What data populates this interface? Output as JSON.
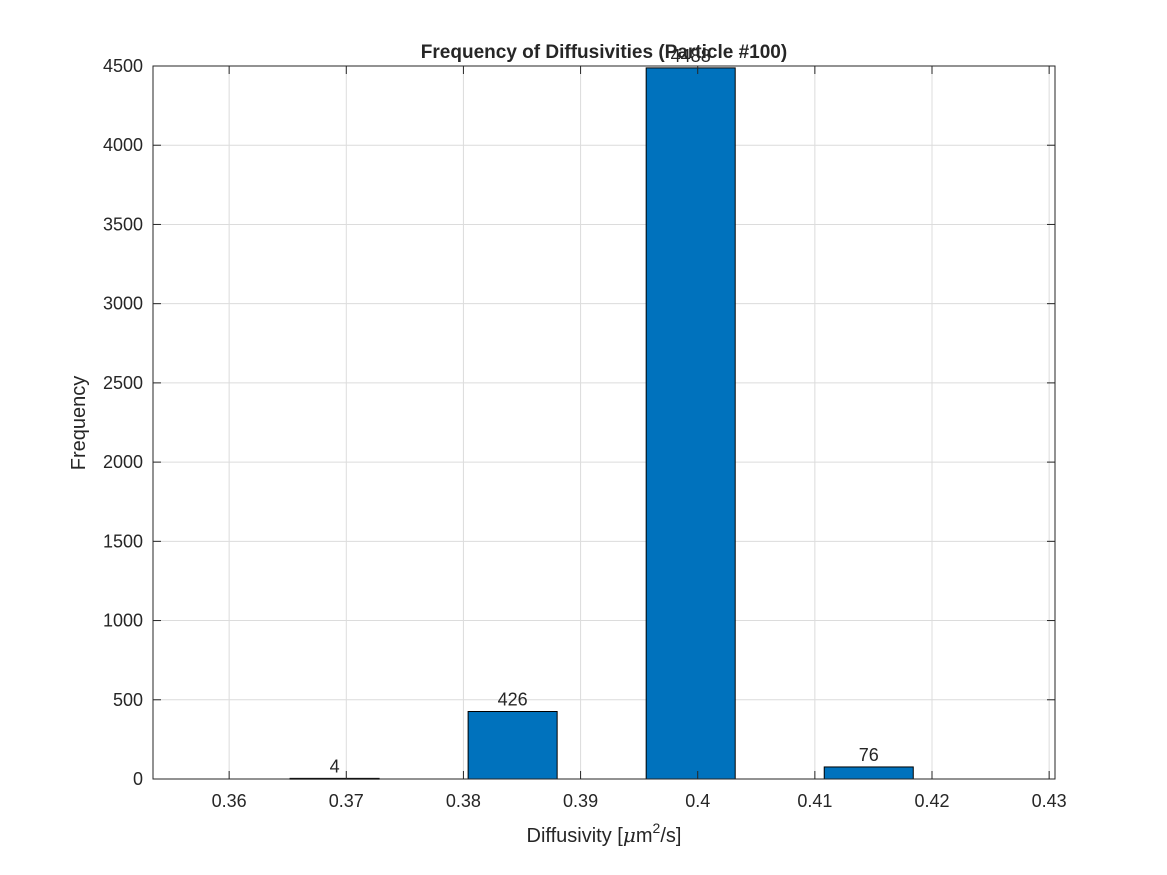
{
  "chart_data": {
    "type": "bar",
    "title": "Frequency of Diffusivities (Particle #100)",
    "xlabel_prefix": "Diffusivity [",
    "xlabel_mu": "μ",
    "xlabel_unit_base": "m",
    "xlabel_sup": "2",
    "xlabel_suffix": "/s]",
    "ylabel": "Frequency",
    "xlim": [
      0.3535,
      0.4305
    ],
    "ylim": [
      0,
      4500
    ],
    "x_ticks": [
      0.36,
      0.37,
      0.38,
      0.39,
      0.4,
      0.41,
      0.42,
      0.43
    ],
    "x_tick_labels": [
      "0.36",
      "0.37",
      "0.38",
      "0.39",
      "0.4",
      "0.41",
      "0.42",
      "0.43"
    ],
    "y_ticks": [
      0,
      500,
      1000,
      1500,
      2000,
      2500,
      3000,
      3500,
      4000,
      4500
    ],
    "y_tick_labels": [
      "0",
      "500",
      "1000",
      "1500",
      "2000",
      "2500",
      "3000",
      "3500",
      "4000",
      "4500"
    ],
    "grid": true,
    "bar_color": "#0072bd",
    "bars": [
      {
        "x": 0.369,
        "width": 0.0076,
        "value": 4,
        "label": "4"
      },
      {
        "x": 0.3842,
        "width": 0.0076,
        "value": 426,
        "label": "426"
      },
      {
        "x": 0.3994,
        "width": 0.0076,
        "value": 4488,
        "label": "4488"
      },
      {
        "x": 0.4146,
        "width": 0.0076,
        "value": 76,
        "label": "76"
      }
    ]
  }
}
